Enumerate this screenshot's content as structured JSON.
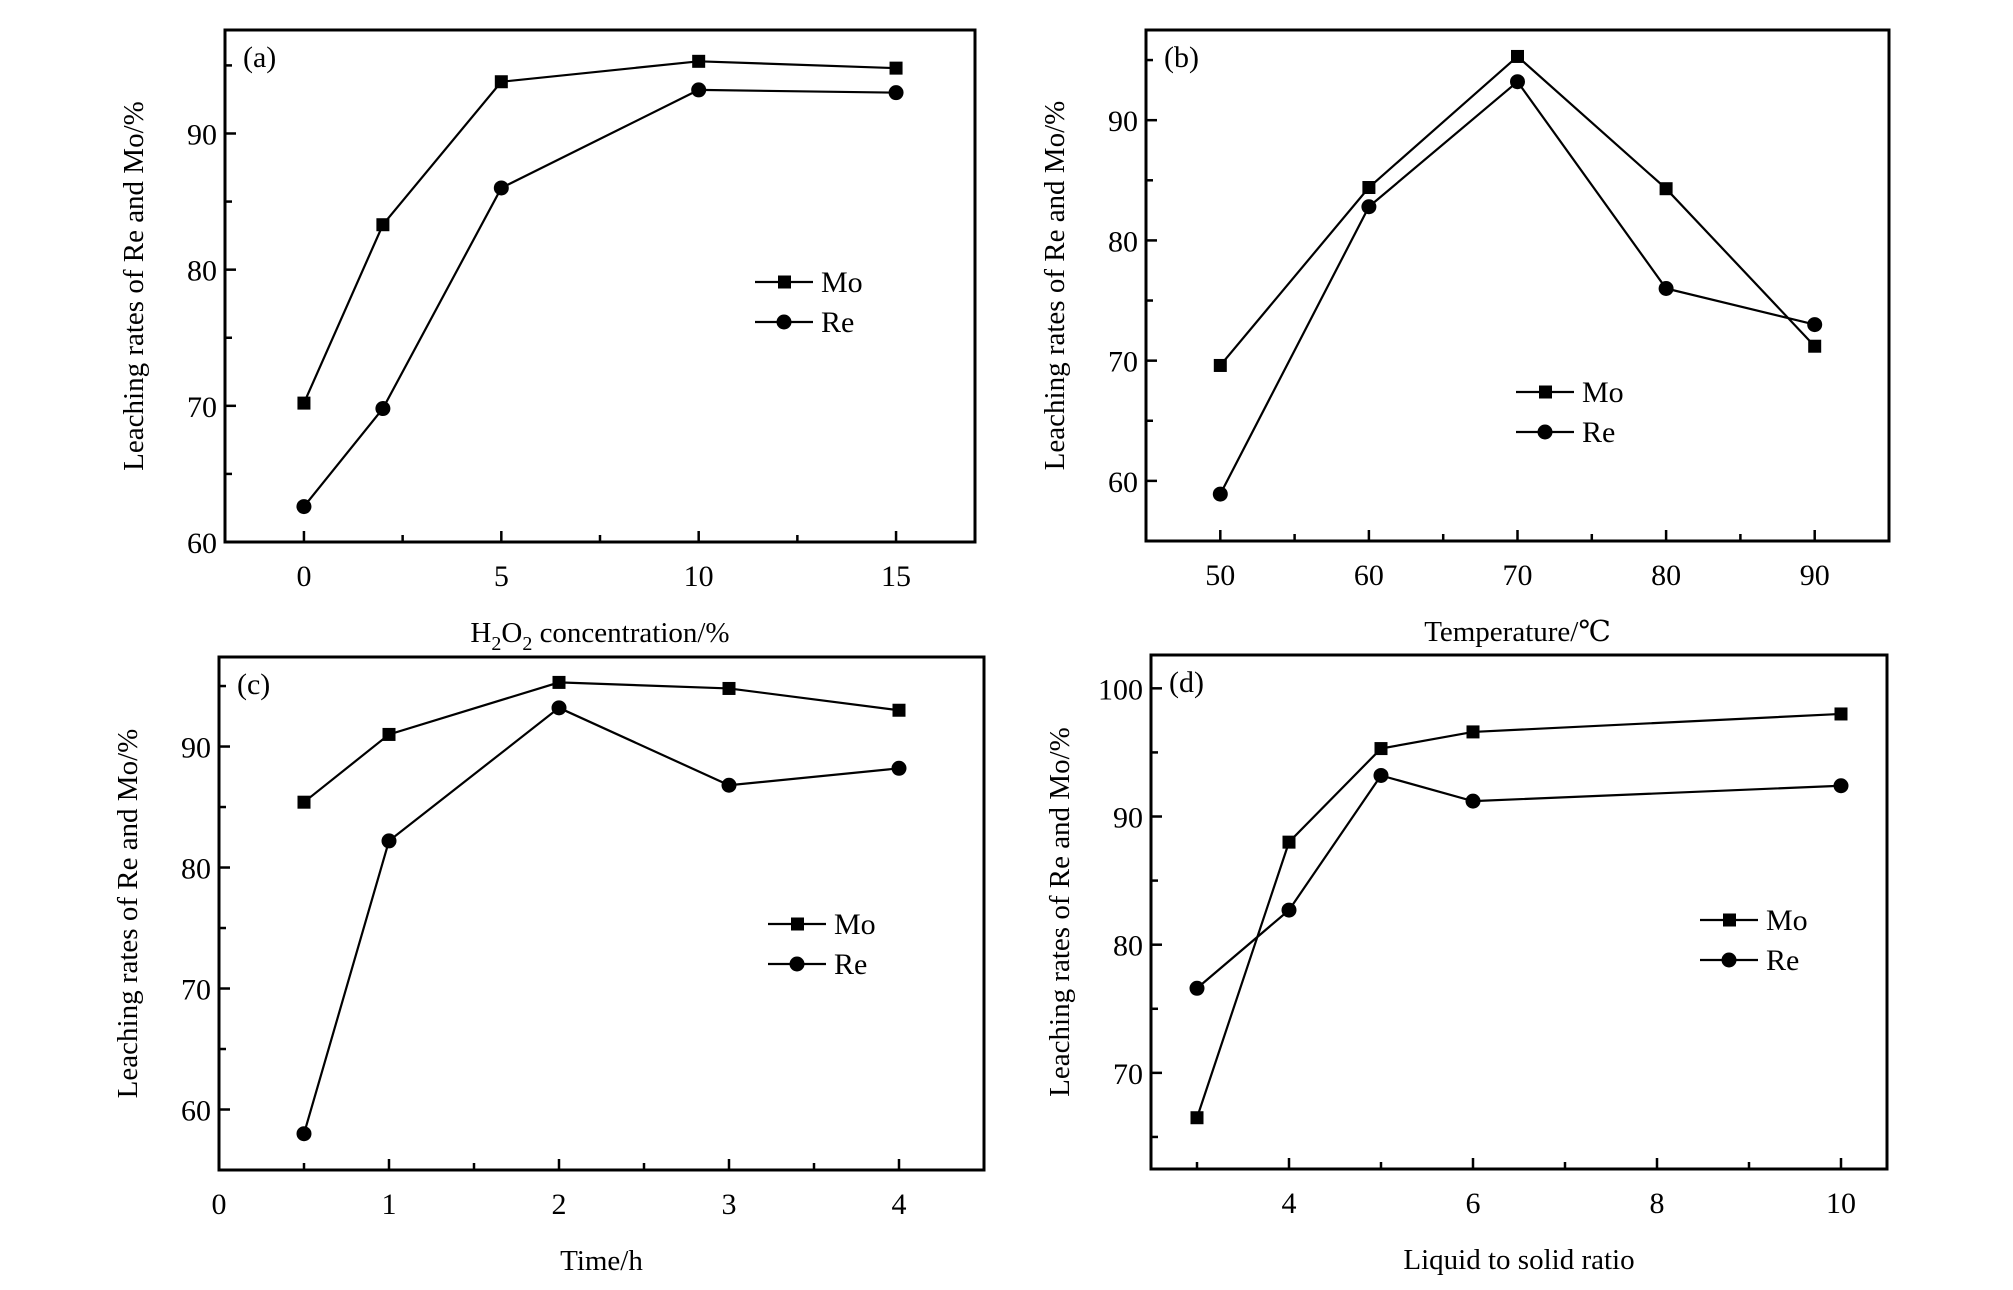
{
  "chart_data": [
    {
      "type": "line",
      "panel_label": "(a)",
      "title": "",
      "xlabel": "H2O2 concentration/%",
      "xlabel_parts": [
        {
          "t": "H"
        },
        {
          "t": "2",
          "sub": true
        },
        {
          "t": "O"
        },
        {
          "t": "2",
          "sub": true
        },
        {
          "t": " concentration/%"
        }
      ],
      "ylabel": "Leaching rates of Re and Mo/%",
      "xlim": [
        -2,
        17
      ],
      "ylim": [
        60,
        97.6
      ],
      "x_major_ticks": [
        0,
        5,
        10,
        15
      ],
      "x_minor_ticks": [
        2.5,
        7.5,
        12.5
      ],
      "x_tick_labels": [
        "0",
        "5",
        "10",
        "15"
      ],
      "y_major_ticks": [
        60,
        70,
        80,
        90
      ],
      "y_minor_ticks": [
        65,
        75,
        85,
        95
      ],
      "y_tick_labels": [
        "60",
        "70",
        "80",
        "90"
      ],
      "grid": false,
      "legend_position": "right-center",
      "x": [
        0,
        2,
        5,
        10,
        15
      ],
      "series": [
        {
          "name": "Mo",
          "marker": "square",
          "values": [
            70.2,
            83.3,
            93.8,
            95.3,
            94.8
          ]
        },
        {
          "name": "Re",
          "marker": "circle",
          "values": [
            62.6,
            69.8,
            86.0,
            93.2,
            93.0
          ]
        }
      ]
    },
    {
      "type": "line",
      "panel_label": "(b)",
      "title": "",
      "xlabel": "Temperature/℃",
      "xlabel_parts": [
        {
          "t": "Temperature/℃"
        }
      ],
      "ylabel": "Leaching rates of Re and Mo/%",
      "xlim": [
        45,
        95
      ],
      "ylim": [
        55,
        97.5
      ],
      "x_major_ticks": [
        50,
        60,
        70,
        80,
        90
      ],
      "x_minor_ticks": [
        55,
        65,
        75,
        85
      ],
      "x_tick_labels": [
        "50",
        "60",
        "70",
        "80",
        "90"
      ],
      "y_major_ticks": [
        60,
        70,
        80,
        90
      ],
      "y_minor_ticks": [
        65,
        75,
        85,
        95
      ],
      "y_tick_labels": [
        "60",
        "70",
        "80",
        "90"
      ],
      "grid": false,
      "legend_position": "bottom-center",
      "x": [
        50,
        60,
        70,
        80,
        90
      ],
      "series": [
        {
          "name": "Mo",
          "marker": "square",
          "values": [
            69.6,
            84.4,
            95.3,
            84.3,
            71.2
          ]
        },
        {
          "name": "Re",
          "marker": "circle",
          "values": [
            58.9,
            82.8,
            93.2,
            76.0,
            73.0
          ]
        }
      ]
    },
    {
      "type": "line",
      "panel_label": "(c)",
      "title": "",
      "xlabel": "Time/h",
      "xlabel_parts": [
        {
          "t": "Time/h"
        }
      ],
      "ylabel": "Leaching rates of Re and Mo/%",
      "xlim": [
        0,
        4.5
      ],
      "ylim": [
        55,
        97.4
      ],
      "x_major_ticks": [
        0,
        1,
        2,
        3,
        4
      ],
      "x_minor_ticks": [
        0.5,
        1.5,
        2.5,
        3.5
      ],
      "x_tick_labels": [
        "0",
        "1",
        "2",
        "3",
        "4"
      ],
      "y_major_ticks": [
        60,
        70,
        80,
        90
      ],
      "y_minor_ticks": [
        65,
        75,
        85,
        95
      ],
      "y_tick_labels": [
        "60",
        "70",
        "80",
        "90"
      ],
      "grid": false,
      "legend_position": "right-center",
      "x": [
        0.5,
        1,
        2,
        3,
        4
      ],
      "series": [
        {
          "name": "Mo",
          "marker": "square",
          "values": [
            85.4,
            91.0,
            95.3,
            94.8,
            93.0
          ]
        },
        {
          "name": "Re",
          "marker": "circle",
          "values": [
            58.0,
            82.2,
            93.2,
            86.8,
            88.2
          ]
        }
      ]
    },
    {
      "type": "line",
      "panel_label": "(d)",
      "title": "",
      "xlabel": "Liquid to solid ratio",
      "xlabel_parts": [
        {
          "t": "Liquid to solid ratio"
        }
      ],
      "ylabel": "Leaching rates of Re and Mo/%",
      "xlim": [
        2.5,
        10.5
      ],
      "ylim": [
        62.5,
        102.6
      ],
      "x_major_ticks": [
        4,
        6,
        8,
        10
      ],
      "x_minor_ticks": [
        3,
        5,
        7,
        9
      ],
      "x_tick_labels": [
        "4",
        "6",
        "8",
        "10"
      ],
      "y_major_ticks": [
        70,
        80,
        90,
        100
      ],
      "y_minor_ticks": [
        65,
        75,
        85,
        95
      ],
      "y_tick_labels": [
        "70",
        "80",
        "90",
        "100"
      ],
      "grid": false,
      "legend_position": "right-center",
      "x": [
        3,
        4,
        5,
        6,
        10
      ],
      "series": [
        {
          "name": "Mo",
          "marker": "square",
          "values": [
            66.5,
            88.0,
            95.3,
            96.6,
            98.0
          ]
        },
        {
          "name": "Re",
          "marker": "circle",
          "values": [
            76.6,
            82.7,
            93.2,
            91.2,
            92.4
          ]
        }
      ]
    }
  ]
}
